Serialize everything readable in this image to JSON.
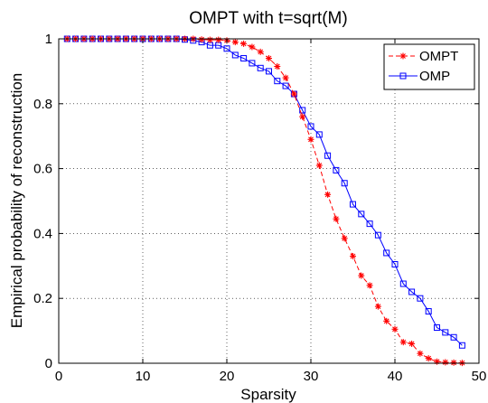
{
  "chart_data": {
    "type": "line",
    "title": "OMPT with t=sqrt(M)",
    "xlabel": "Sparsity",
    "ylabel": "Empirical probability of reconstruction",
    "xlim": [
      0,
      50
    ],
    "ylim": [
      0,
      1
    ],
    "xticks": [
      "0",
      "10",
      "20",
      "30",
      "40",
      "50"
    ],
    "yticks": [
      "0",
      "0.2",
      "0.4",
      "0.6",
      "0.8",
      "1"
    ],
    "grid": true,
    "legend_position": "top-right",
    "x": [
      1,
      2,
      3,
      4,
      5,
      6,
      7,
      8,
      9,
      10,
      11,
      12,
      13,
      14,
      15,
      16,
      17,
      18,
      19,
      20,
      21,
      22,
      23,
      24,
      25,
      26,
      27,
      28,
      29,
      30,
      31,
      32,
      33,
      34,
      35,
      36,
      37,
      38,
      39,
      40,
      41,
      42,
      43,
      44,
      45,
      46,
      47,
      48
    ],
    "series": [
      {
        "name": "OMPT",
        "color": "#ff0000",
        "line_style": "dashed",
        "marker": "asterisk",
        "values": [
          1,
          1,
          1,
          1,
          1,
          1,
          1,
          1,
          1,
          1,
          1,
          1,
          1,
          1,
          1,
          1,
          0.998,
          0.997,
          0.997,
          0.995,
          0.99,
          0.985,
          0.975,
          0.96,
          0.94,
          0.915,
          0.88,
          0.83,
          0.76,
          0.69,
          0.61,
          0.52,
          0.445,
          0.385,
          0.33,
          0.27,
          0.24,
          0.175,
          0.13,
          0.105,
          0.065,
          0.06,
          0.03,
          0.015,
          0.005,
          0.003,
          0.002,
          0.001
        ]
      },
      {
        "name": "OMP",
        "color": "#0000ff",
        "line_style": "solid",
        "marker": "square",
        "values": [
          1,
          1,
          1,
          1,
          1,
          1,
          1,
          1,
          1,
          1,
          1,
          1,
          1,
          1,
          0.998,
          0.995,
          0.99,
          0.98,
          0.98,
          0.97,
          0.95,
          0.94,
          0.925,
          0.91,
          0.9,
          0.87,
          0.855,
          0.83,
          0.78,
          0.73,
          0.705,
          0.64,
          0.595,
          0.555,
          0.49,
          0.46,
          0.43,
          0.395,
          0.34,
          0.305,
          0.245,
          0.22,
          0.2,
          0.16,
          0.11,
          0.095,
          0.08,
          0.055
        ]
      }
    ]
  }
}
